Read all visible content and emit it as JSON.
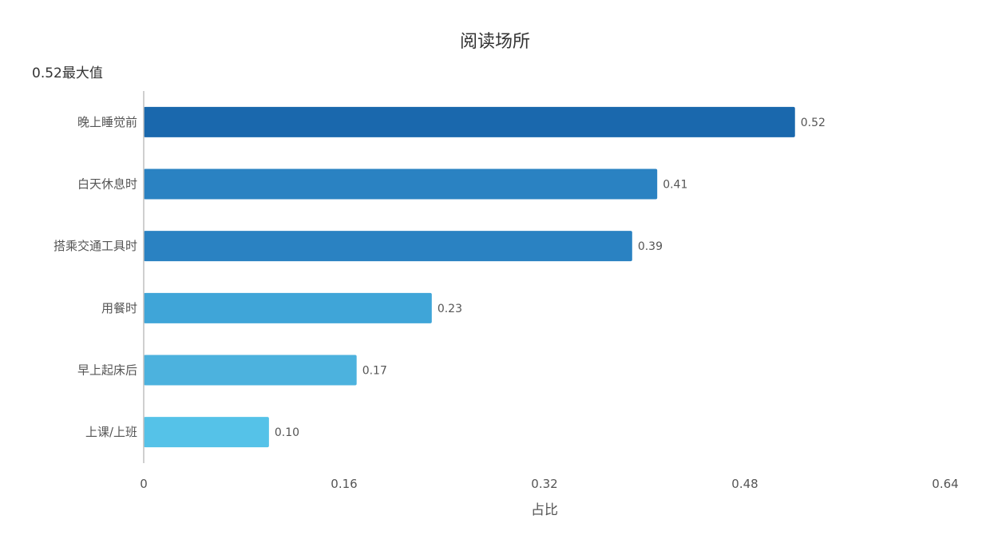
{
  "chart_data": {
    "type": "bar",
    "orientation": "horizontal",
    "title": "阅读场所",
    "annotation": "0.52最大值",
    "categories": [
      "晚上睡觉前",
      "白天休息时",
      "搭乘交通工具时",
      "用餐时",
      "早上起床后",
      "上课/上班"
    ],
    "values": [
      0.52,
      0.41,
      0.39,
      0.23,
      0.17,
      0.1
    ],
    "value_labels": [
      "0.52",
      "0.41",
      "0.39",
      "0.23",
      "0.17",
      "0.10"
    ],
    "colors": [
      "#1a68ad",
      "#2a82c2",
      "#2a82c2",
      "#3fa5d8",
      "#4cb2de",
      "#55c2e8"
    ],
    "xlabel": "占比",
    "ylabel": "",
    "xlim": [
      0,
      0.64
    ],
    "xticks": [
      0,
      0.16,
      0.32,
      0.48,
      0.64
    ],
    "xtick_labels": [
      "0",
      "0.16",
      "0.32",
      "0.48",
      "0.64"
    ],
    "grid": false,
    "legend": "none"
  }
}
